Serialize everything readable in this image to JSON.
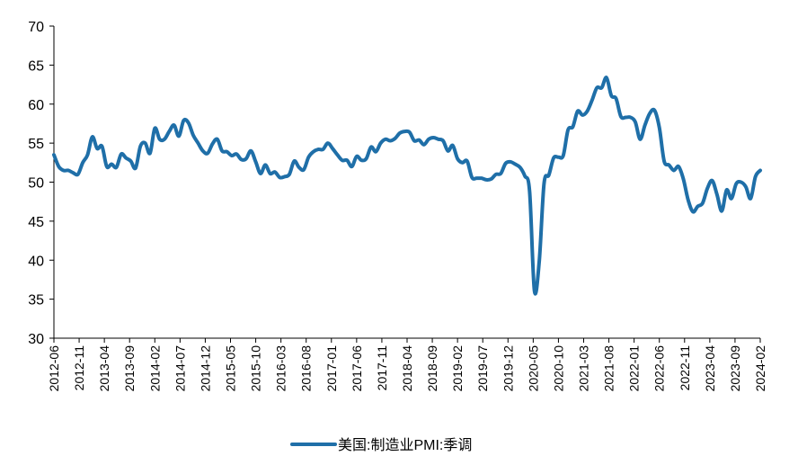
{
  "chart_data": {
    "type": "line",
    "title": "",
    "xlabel": "",
    "ylabel": "",
    "ylim": [
      30,
      70
    ],
    "yticks": [
      30,
      35,
      40,
      45,
      50,
      55,
      60,
      65,
      70
    ],
    "xtick_labels": [
      "2012-06",
      "2012-11",
      "2013-04",
      "2013-09",
      "2014-02",
      "2014-07",
      "2014-12",
      "2015-05",
      "2015-10",
      "2016-03",
      "2016-08",
      "2017-01",
      "2017-06",
      "2017-11",
      "2018-04",
      "2018-09",
      "2019-02",
      "2019-07",
      "2019-12",
      "2020-05",
      "2020-10",
      "2021-03",
      "2021-08",
      "2022-01",
      "2022-06",
      "2022-11",
      "2023-04",
      "2023-09",
      "2024-02"
    ],
    "grid": false,
    "legend_position": "bottom",
    "series": [
      {
        "name": "美国:制造业PMI:季调",
        "color": "#1f6fa8",
        "start": "2012-06",
        "end": "2024-02",
        "values": [
          53.5,
          52.0,
          51.5,
          51.5,
          51.2,
          51.0,
          52.5,
          53.5,
          55.8,
          54.3,
          54.6,
          52.0,
          52.3,
          51.9,
          53.6,
          53.1,
          52.7,
          51.8,
          54.6,
          55.0,
          53.7,
          56.9,
          55.5,
          55.5,
          56.5,
          57.3,
          55.9,
          57.9,
          57.6,
          56.0,
          55.0,
          54.0,
          53.7,
          54.9,
          55.5,
          54.0,
          53.9,
          53.4,
          53.6,
          52.9,
          53.0,
          54.0,
          52.6,
          51.1,
          52.2,
          51.1,
          51.3,
          50.6,
          50.7,
          51.0,
          52.7,
          51.9,
          51.6,
          53.2,
          53.9,
          54.2,
          54.2,
          55.0,
          54.3,
          53.5,
          52.8,
          52.8,
          52.0,
          53.3,
          52.8,
          53.0,
          54.5,
          53.9,
          55.0,
          55.5,
          55.3,
          55.6,
          56.3,
          56.5,
          56.4,
          55.3,
          55.4,
          54.8,
          55.5,
          55.7,
          55.5,
          55.3,
          54.0,
          54.7,
          53.0,
          52.5,
          52.7,
          50.6,
          50.5,
          50.5,
          50.3,
          50.4,
          51.0,
          51.1,
          52.4,
          52.6,
          52.3,
          51.9,
          50.8,
          48.8,
          36.1,
          39.8,
          49.8,
          50.9,
          53.1,
          53.2,
          53.4,
          56.7,
          57.1,
          59.1,
          58.6,
          59.1,
          60.5,
          62.1,
          62.1,
          63.4,
          61.1,
          60.7,
          58.4,
          58.3,
          58.3,
          57.7,
          55.5,
          57.3,
          58.8,
          59.2,
          57.0,
          52.7,
          52.2,
          51.5,
          52.0,
          50.4,
          47.7,
          46.2,
          46.9,
          47.3,
          49.2,
          50.2,
          48.4,
          46.3,
          49.0,
          47.9,
          49.8,
          50.0,
          49.4,
          47.9,
          50.7,
          51.5
        ]
      }
    ]
  }
}
